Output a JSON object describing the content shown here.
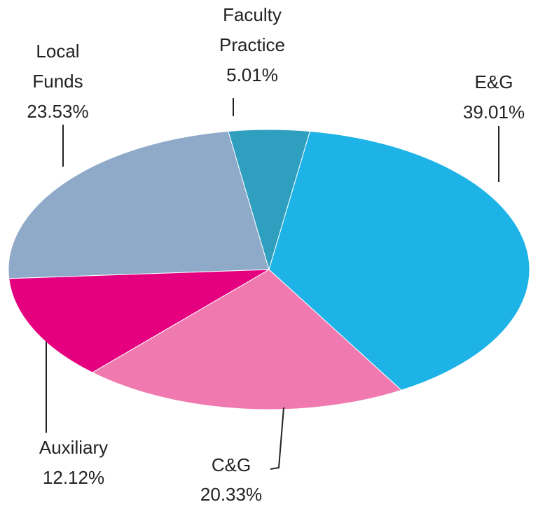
{
  "chart_data": {
    "type": "pie",
    "categories": [
      "Local Funds",
      "Faculty Practice",
      "E&G",
      "C&G",
      "Auxiliary"
    ],
    "values": [
      23.53,
      5.01,
      39.01,
      20.33,
      12.12
    ],
    "value_labels": [
      "23.53%",
      "5.01%",
      "39.01%",
      "20.33%",
      "12.12%"
    ],
    "colors": [
      "#8fa9c9",
      "#2f9fbf",
      "#1db3e6",
      "#f07aaf",
      "#e4007f"
    ]
  }
}
